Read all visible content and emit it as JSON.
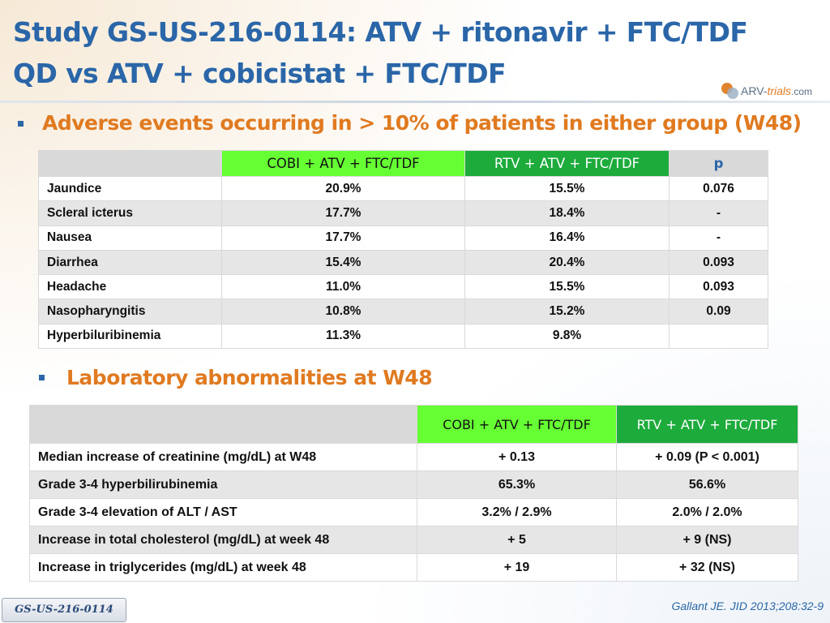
{
  "title": {
    "line1": "Study GS-US-216-0114: ATV + ritonavir + FTC/TDF",
    "line2": "QD vs ATV + cobicistat + FTC/TDF"
  },
  "logo": {
    "arv": "ARV-",
    "trials": "trials",
    "com": ".com"
  },
  "section1": {
    "heading": "Adverse events occurring in > 10% of patients in either group (W48)",
    "columns": [
      "",
      "COBI + ATV + FTC/TDF",
      "RTV + ATV + FTC/TDF",
      "p"
    ],
    "rows": [
      {
        "label": "Jaundice",
        "cobi": "20.9%",
        "rtv": "15.5%",
        "p": "0.076"
      },
      {
        "label": "Scleral icterus",
        "cobi": "17.7%",
        "rtv": "18.4%",
        "p": "-"
      },
      {
        "label": "Nausea",
        "cobi": "17.7%",
        "rtv": "16.4%",
        "p": "-"
      },
      {
        "label": "Diarrhea",
        "cobi": "15.4%",
        "rtv": "20.4%",
        "p": "0.093"
      },
      {
        "label": "Headache",
        "cobi": "11.0%",
        "rtv": "15.5%",
        "p": "0.093"
      },
      {
        "label": "Nasopharyngitis",
        "cobi": "10.8%",
        "rtv": "15.2%",
        "p": "0.09"
      },
      {
        "label": "Hyperbiluribinemia",
        "cobi": "11.3%",
        "rtv": "9.8%",
        "p": ""
      }
    ]
  },
  "section2": {
    "heading": "Laboratory abnormalities at W48",
    "columns": [
      "",
      "COBI + ATV + FTC/TDF",
      "RTV + ATV + FTC/TDF"
    ],
    "rows": [
      {
        "label": "Median increase of creatinine (mg/dL) at W48",
        "cobi": "+ 0.13",
        "rtv": "+ 0.09 (P < 0.001)"
      },
      {
        "label": "Grade 3-4 hyperbilirubinemia",
        "cobi": "65.3%",
        "rtv": "56.6%"
      },
      {
        "label": "Grade 3-4 elevation of ALT / AST",
        "cobi": "3.2% / 2.9%",
        "rtv": "2.0% / 2.0%"
      },
      {
        "label": "Increase in total cholesterol (mg/dL) at week 48",
        "cobi": "+ 5",
        "rtv": "+ 9 (NS)"
      },
      {
        "label": "Increase in triglycerides (mg/dL) at week 48",
        "cobi": "+ 19",
        "rtv": "+ 32 (NS)"
      }
    ]
  },
  "footer": {
    "study_tag": "GS-US-216-0114",
    "citation": "Gallant JE. JID 2013;208:32-9"
  },
  "colors": {
    "title_blue": "#2a66a8",
    "heading_orange": "#e07a20",
    "cobi_header": "#66ff33",
    "rtv_header": "#1dab3c",
    "header_gray": "#d9d9d9",
    "row_alt_gray": "#e6e6e6"
  }
}
